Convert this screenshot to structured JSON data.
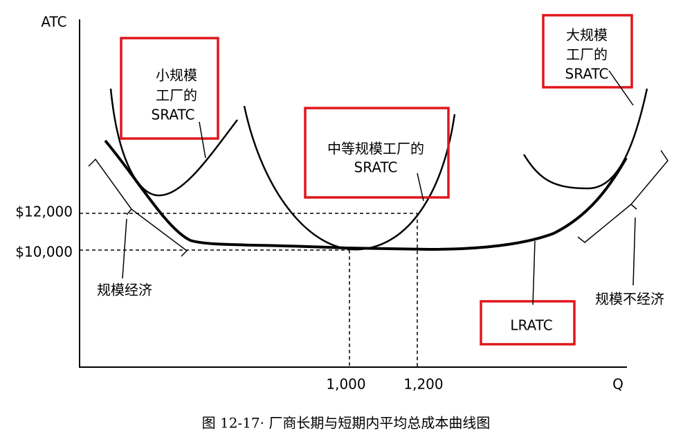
{
  "axes": {
    "y_label": "ATC",
    "x_label": "Q",
    "y_ticks": [
      "$12,000",
      "$10,000"
    ],
    "x_ticks": [
      "1,000",
      "1,200"
    ]
  },
  "labels": {
    "small": [
      "小规模",
      "工厂的",
      "SRATC"
    ],
    "medium": [
      "中等规模工厂的",
      "SRATC"
    ],
    "large": [
      "大规模",
      "工厂的",
      "SRATC"
    ],
    "lratc": "LRATC",
    "economies": "规模经济",
    "diseconomies": "规模不经济"
  },
  "caption": "图 12-17· 厂商长期与短期内平均总成本曲线图"
}
